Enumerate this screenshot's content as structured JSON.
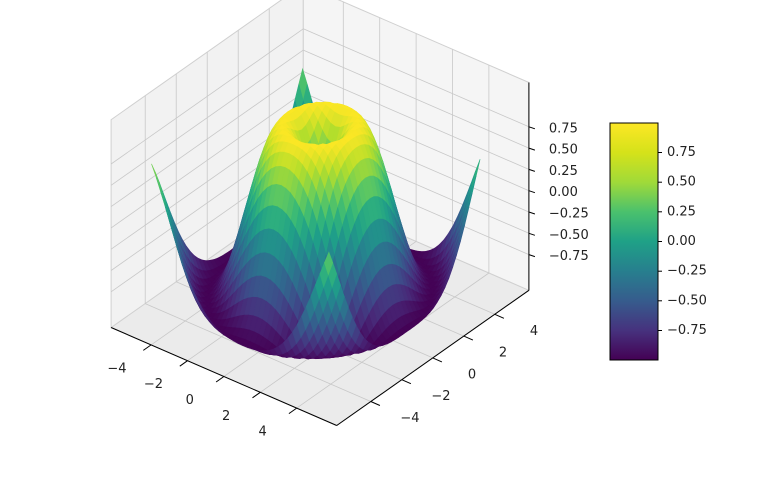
{
  "chart_data": {
    "type": "surface",
    "function": "z = sin(sqrt(x^2 + y^2))",
    "x_range": [
      -5,
      5
    ],
    "y_range": [
      -5,
      5
    ],
    "x_step": 0.25,
    "y_step": 0.25,
    "z_range": [
      -1,
      1
    ],
    "colormap": "viridis",
    "projection": "3d",
    "grid": true,
    "x_ticks": [
      "−4",
      "−2",
      "0",
      "2",
      "4"
    ],
    "y_ticks": [
      "−4",
      "−2",
      "0",
      "2",
      "4"
    ],
    "z_ticks": [
      "0.75",
      "0.50",
      "0.25",
      "0.00",
      "−0.25",
      "−0.50",
      "−0.75"
    ],
    "colorbar": {
      "position": "right",
      "range": [
        -0.999,
        0.999
      ],
      "ticks": [
        "0.75",
        "0.50",
        "0.25",
        "0.00",
        "−0.25",
        "−0.50",
        "−0.75"
      ]
    }
  }
}
